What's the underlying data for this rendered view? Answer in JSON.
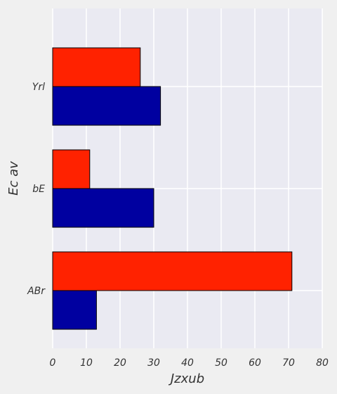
{
  "chart_data": {
    "type": "bar",
    "orientation": "horizontal",
    "title": "",
    "xlabel": "Jzxub",
    "ylabel": "Ec av",
    "categories": [
      "ABr",
      "bE",
      "Yrl"
    ],
    "series": [
      {
        "values": [
          13,
          30,
          32
        ],
        "color": "#0000a0"
      },
      {
        "values": [
          71,
          11,
          26
        ],
        "color": "#ff2200"
      }
    ],
    "xlim": [
      0,
      80
    ],
    "xticks": [
      0,
      10,
      20,
      30,
      40,
      50,
      60,
      70,
      80
    ],
    "grid": true,
    "legend": "none"
  },
  "colors": {
    "page_background": "#f0f0f0",
    "plot_background": "#eaeaf2",
    "grid": "#ffffff"
  }
}
